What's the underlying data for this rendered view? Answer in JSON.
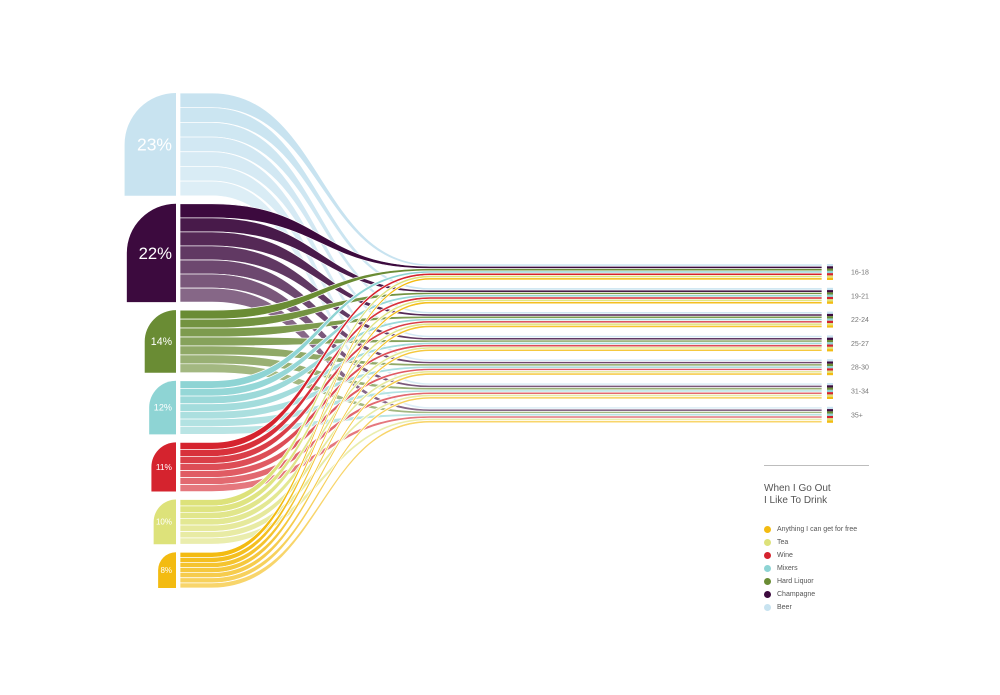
{
  "legend": {
    "title_line1": "When I Go Out",
    "title_line2": "I Like To Drink"
  },
  "chart_data": {
    "type": "sankey",
    "title": "When I Go Out I Like To Drink",
    "sources": [
      {
        "name": "Beer",
        "label": "23%",
        "value": 23,
        "color": "#c8e3f0"
      },
      {
        "name": "Champagne",
        "label": "22%",
        "value": 22,
        "color": "#3c0a3e"
      },
      {
        "name": "Hard Liquor",
        "label": "14%",
        "value": 14,
        "color": "#6a8c34"
      },
      {
        "name": "Mixers",
        "label": "12%",
        "value": 12,
        "color": "#8ed4d4"
      },
      {
        "name": "Wine",
        "label": "11%",
        "value": 11,
        "color": "#d5232e"
      },
      {
        "name": "Tea",
        "label": "10%",
        "value": 10,
        "color": "#dde27a"
      },
      {
        "name": "Anything I can get for free",
        "label": "8%",
        "value": 8,
        "color": "#f3bb11"
      }
    ],
    "targets": [
      "16-18",
      "19-21",
      "22-24",
      "25-27",
      "28-30",
      "31-34",
      "35+"
    ],
    "legend_order": [
      "Anything I can get for free",
      "Tea",
      "Wine",
      "Mixers",
      "Hard Liquor",
      "Champagne",
      "Beer"
    ],
    "legend_placement": "bottom-right"
  }
}
